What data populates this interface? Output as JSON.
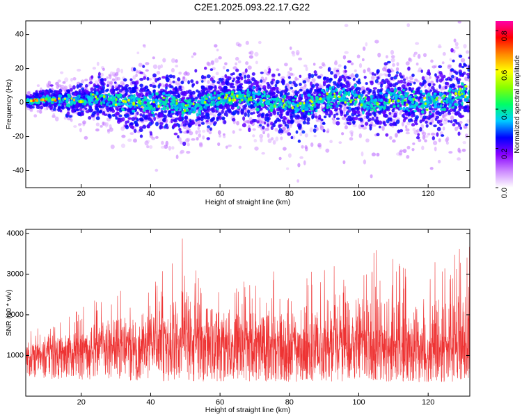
{
  "title": "C2E1.2025.093.22.17.G22",
  "chart_data": [
    {
      "type": "heatmap",
      "description_of_content": "spectrogram",
      "xlabel": "Height of straight line (km)",
      "ylabel": "Frequency (Hz)",
      "xlim": [
        4,
        132
      ],
      "ylim": [
        -50,
        48
      ],
      "x_ticks": [
        20,
        40,
        60,
        80,
        100,
        120
      ],
      "y_ticks": [
        -40,
        -20,
        0,
        20,
        40
      ],
      "colorbar": {
        "label": "Normalized spectral amplitude",
        "range": [
          0,
          0.85
        ],
        "ticks": [
          "0.0",
          "0.2",
          "0.4",
          "0.6",
          "0.8"
        ],
        "colormap": [
          "#ffffff",
          "#cc88ff",
          "#8800ff",
          "#0000ff",
          "#00ccff",
          "#00ff66",
          "#88ff00",
          "#ffff00",
          "#ff8800",
          "#ff0000",
          "#ff00aa"
        ]
      },
      "band_center_hz": [
        [
          5,
          1
        ],
        [
          10,
          2
        ],
        [
          15,
          1
        ],
        [
          20,
          1
        ],
        [
          25,
          3
        ],
        [
          30,
          1
        ],
        [
          35,
          0
        ],
        [
          40,
          -2
        ],
        [
          45,
          1
        ],
        [
          50,
          -3
        ],
        [
          55,
          0
        ],
        [
          60,
          2
        ],
        [
          65,
          4
        ],
        [
          70,
          2
        ],
        [
          75,
          0
        ],
        [
          80,
          -1
        ],
        [
          85,
          -2
        ],
        [
          90,
          3
        ],
        [
          95,
          4
        ],
        [
          100,
          1
        ],
        [
          105,
          0
        ],
        [
          110,
          2
        ],
        [
          115,
          1
        ],
        [
          120,
          0
        ],
        [
          125,
          2
        ],
        [
          130,
          5
        ]
      ],
      "band_halfwidth_hz": [
        [
          5,
          3
        ],
        [
          20,
          8
        ],
        [
          40,
          15
        ],
        [
          60,
          12
        ],
        [
          80,
          14
        ],
        [
          100,
          14
        ],
        [
          120,
          16
        ],
        [
          130,
          18
        ]
      ]
    },
    {
      "type": "line",
      "xlabel": "Height of straight line (km)",
      "ylabel": "SNR (10 * v/v)",
      "xlim": [
        4,
        132
      ],
      "ylim": [
        0,
        4100
      ],
      "x_ticks": [
        20,
        40,
        60,
        80,
        100,
        120
      ],
      "y_ticks": [
        1000,
        2000,
        3000,
        4000
      ],
      "series": [
        {
          "color": "#ee3333",
          "envelope_upper": [
            [
              5,
              1700
            ],
            [
              10,
              1700
            ],
            [
              15,
              1900
            ],
            [
              20,
              2200
            ],
            [
              25,
              2500
            ],
            [
              30,
              2600
            ],
            [
              35,
              2700
            ],
            [
              40,
              2900
            ],
            [
              45,
              3200
            ],
            [
              50,
              4100
            ],
            [
              55,
              3100
            ],
            [
              60,
              3000
            ],
            [
              65,
              3000
            ],
            [
              70,
              2900
            ],
            [
              75,
              3100
            ],
            [
              80,
              3000
            ],
            [
              85,
              3200
            ],
            [
              90,
              3100
            ],
            [
              95,
              3300
            ],
            [
              100,
              3500
            ],
            [
              105,
              3700
            ],
            [
              110,
              3500
            ],
            [
              115,
              3200
            ],
            [
              120,
              3300
            ],
            [
              125,
              3700
            ],
            [
              130,
              3700
            ]
          ],
          "envelope_lower": [
            [
              5,
              300
            ],
            [
              10,
              200
            ],
            [
              15,
              200
            ],
            [
              20,
              150
            ],
            [
              30,
              100
            ],
            [
              50,
              50
            ],
            [
              80,
              50
            ],
            [
              100,
              50
            ],
            [
              130,
              50
            ]
          ],
          "typical_level": [
            [
              5,
              900
            ],
            [
              20,
              1000
            ],
            [
              40,
              1100
            ],
            [
              60,
              1100
            ],
            [
              80,
              1000
            ],
            [
              100,
              1100
            ],
            [
              120,
              1000
            ],
            [
              130,
              950
            ]
          ]
        }
      ]
    }
  ]
}
